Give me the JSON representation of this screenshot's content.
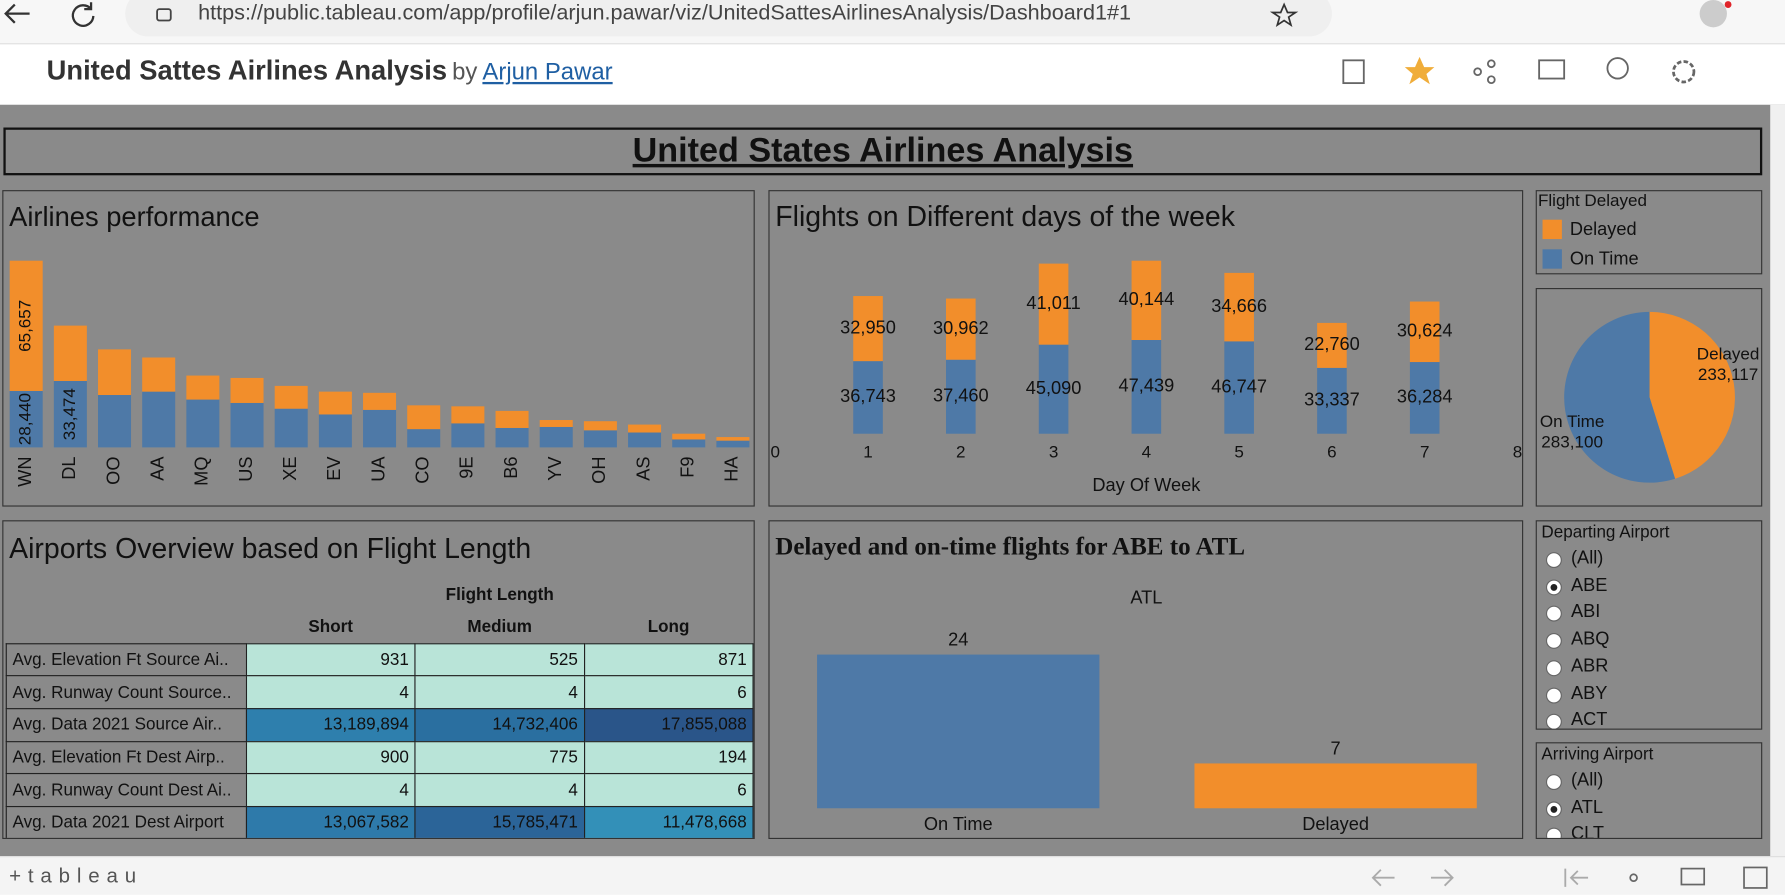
{
  "browser": {
    "url": "https://public.tableau.com/app/profile/arjun.pawar/viz/UnitedSattesAirlinesAnalysis/Dashboard1#1"
  },
  "header": {
    "title": "United Sattes Airlines Analysis",
    "by": "by",
    "author": "Arjun Pawar"
  },
  "dashboard": {
    "title": "United States Airlines Analysis"
  },
  "chart_data": [
    {
      "type": "bar",
      "stacked": true,
      "title": "Airlines performance",
      "categories": [
        "WN",
        "DL",
        "OO",
        "AA",
        "MQ",
        "US",
        "XE",
        "EV",
        "UA",
        "CO",
        "9E",
        "B6",
        "YV",
        "OH",
        "AS",
        "F9",
        "HA"
      ],
      "series": [
        {
          "name": "Delayed",
          "color": "#f28e2b",
          "values": [
            65657,
            27900,
            23000,
            17200,
            12100,
            12600,
            11500,
            11500,
            8600,
            12000,
            8600,
            8600,
            3500,
            4600,
            4000,
            2900,
            1800
          ],
          "value_labels": [
            "65,657",
            null,
            null,
            null,
            null,
            null,
            null,
            null,
            null,
            null,
            null,
            null,
            null,
            null,
            null,
            null,
            null
          ]
        },
        {
          "name": "On Time",
          "color": "#4e79a7",
          "values": [
            28440,
            33474,
            26400,
            28100,
            24100,
            22400,
            19500,
            16600,
            18900,
            9200,
            12100,
            9800,
            10300,
            8600,
            7500,
            4000,
            3400
          ],
          "value_labels": [
            "28,440",
            "33,474",
            null,
            null,
            null,
            null,
            null,
            null,
            null,
            null,
            null,
            null,
            null,
            null,
            null,
            null,
            null
          ]
        }
      ]
    },
    {
      "type": "bar",
      "stacked": true,
      "title": "Flights on Different days of the week",
      "x_label": "Day Of Week",
      "legend_title": "Flight Delayed",
      "x": [
        1,
        2,
        3,
        4,
        5,
        6,
        7
      ],
      "xlim": [
        0,
        8
      ],
      "xticks": [
        0,
        1,
        2,
        3,
        4,
        5,
        6,
        7,
        8
      ],
      "series": [
        {
          "name": "Delayed",
          "color": "#f28e2b",
          "values": [
            32950,
            30962,
            41011,
            40144,
            34666,
            22760,
            30624
          ],
          "value_labels": [
            "32,950",
            "30,962",
            "41,011",
            "40,144",
            "34,666",
            "22,760",
            "30,624"
          ]
        },
        {
          "name": "On Time",
          "color": "#4e79a7",
          "values": [
            36743,
            37460,
            45090,
            47439,
            46747,
            33337,
            36284
          ],
          "value_labels": [
            "36,743",
            "37,460",
            "45,090",
            "47,439",
            "46,747",
            "33,337",
            "36,284"
          ]
        }
      ]
    },
    {
      "type": "pie",
      "categories": [
        "Delayed",
        "On Time"
      ],
      "values": [
        233117,
        283100
      ],
      "value_labels": [
        "233,117",
        "283,100"
      ],
      "colors": [
        "#f28e2b",
        "#4e79a7"
      ]
    },
    {
      "type": "bar",
      "title": "Delayed and on-time flights for ABE to ATL",
      "facet_label": "ATL",
      "categories": [
        "On Time",
        "Delayed"
      ],
      "values": [
        24,
        7
      ],
      "colors": [
        "#4e79a7",
        "#f28e2b"
      ]
    }
  ],
  "table": {
    "title": "Airports Overview based on Flight Length",
    "column_group": "Flight Length",
    "columns": [
      "Short",
      "Medium",
      "Long"
    ],
    "rows": [
      {
        "label": "Avg. Elevation Ft Source Ai..",
        "cells": [
          "931",
          "525",
          "871"
        ],
        "colors": [
          "#b9e4d8",
          "#b9e4d8",
          "#b9e4d8"
        ]
      },
      {
        "label": "Avg. Runway Count Source..",
        "cells": [
          "4",
          "4",
          "6"
        ],
        "colors": [
          "#b9e4d8",
          "#b9e4d8",
          "#b9e4d8"
        ]
      },
      {
        "label": "Avg. Data 2021 Source Air..",
        "cells": [
          "13,189,894",
          "14,732,406",
          "17,855,088"
        ],
        "colors": [
          "#2e7fad",
          "#2a6fa0",
          "#2a5589"
        ]
      },
      {
        "label": "Avg. Elevation Ft Dest Airp..",
        "cells": [
          "900",
          "775",
          "194"
        ],
        "colors": [
          "#b9e4d8",
          "#b9e4d8",
          "#b9e4d8"
        ]
      },
      {
        "label": "Avg. Runway Count Dest Ai..",
        "cells": [
          "4",
          "4",
          "6"
        ],
        "colors": [
          "#b9e4d8",
          "#b9e4d8",
          "#b9e4d8"
        ]
      },
      {
        "label": "Avg. Data 2021 Dest Airport",
        "cells": [
          "13,067,582",
          "15,785,471",
          "11,478,668"
        ],
        "colors": [
          "#2e7aaa",
          "#2b6498",
          "#3390b8"
        ]
      }
    ]
  },
  "filters": [
    {
      "title": "Departing Airport",
      "options": [
        "(All)",
        "ABE",
        "ABI",
        "ABQ",
        "ABR",
        "ABY",
        "ACT"
      ],
      "selected": 1
    },
    {
      "title": "Arriving Airport",
      "options": [
        "(All)",
        "ATL",
        "CLT"
      ],
      "selected": 1
    }
  ],
  "footer": {
    "logo": "+tableau"
  }
}
